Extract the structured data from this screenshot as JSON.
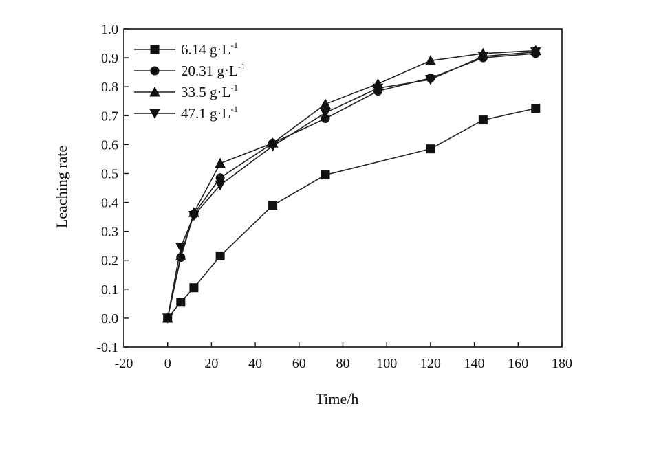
{
  "chart_data": {
    "type": "line",
    "xlabel": "Time/h",
    "ylabel": "Leaching rate",
    "xlim": [
      -20,
      180
    ],
    "ylim": [
      -0.1,
      1.0
    ],
    "xticks": [
      -20,
      0,
      20,
      40,
      60,
      80,
      100,
      120,
      140,
      160,
      180
    ],
    "yticks": [
      -0.1,
      0.0,
      0.1,
      0.2,
      0.3,
      0.4,
      0.5,
      0.6,
      0.7,
      0.8,
      0.9,
      1.0
    ],
    "xtick_labels": [
      "-20",
      "0",
      "20",
      "40",
      "60",
      "80",
      "100",
      "120",
      "140",
      "160",
      "180"
    ],
    "ytick_labels": [
      "-0.1",
      "0.0",
      "0.1",
      "0.2",
      "0.3",
      "0.4",
      "0.5",
      "0.6",
      "0.7",
      "0.8",
      "0.9",
      "1.0"
    ],
    "grid": false,
    "legend_position": "top-left",
    "series": [
      {
        "name": "6.14 g·L",
        "name_sup": "-1",
        "marker": "square",
        "x": [
          0,
          6,
          12,
          24,
          48,
          72,
          120,
          144,
          168
        ],
        "y": [
          0.0,
          0.055,
          0.105,
          0.215,
          0.39,
          0.495,
          0.585,
          0.685,
          0.725
        ]
      },
      {
        "name": "20.31 g·L",
        "name_sup": "-1",
        "marker": "circle",
        "x": [
          0,
          6,
          12,
          24,
          48,
          72,
          96,
          120,
          144,
          168
        ],
        "y": [
          0.0,
          0.21,
          0.36,
          0.485,
          0.605,
          0.69,
          0.785,
          0.83,
          0.9,
          0.915
        ]
      },
      {
        "name": "33.5 g·L",
        "name_sup": "-1",
        "marker": "triangle-up",
        "x": [
          0,
          6,
          12,
          24,
          48,
          72,
          96,
          120,
          144,
          168
        ],
        "y": [
          0.0,
          0.215,
          0.365,
          0.535,
          0.605,
          0.74,
          0.81,
          0.89,
          0.915,
          0.925
        ]
      },
      {
        "name": "47.1 g·L",
        "name_sup": "-1",
        "marker": "triangle-down",
        "x": [
          0,
          6,
          12,
          24,
          48,
          72,
          96,
          120,
          144,
          168
        ],
        "y": [
          0.0,
          0.245,
          0.355,
          0.46,
          0.595,
          0.71,
          0.795,
          0.825,
          0.905,
          0.92
        ]
      }
    ]
  }
}
